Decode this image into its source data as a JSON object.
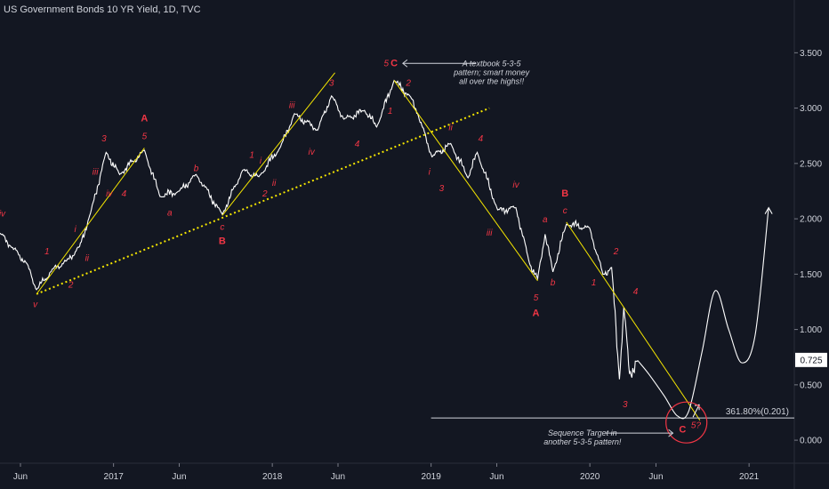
{
  "chart_data": {
    "type": "line",
    "title": "US Government Bonds 10 YR Yield, 1D, TVC",
    "y_ticks": [
      0.0,
      0.5,
      1.0,
      1.5,
      2.0,
      2.5,
      3.0,
      3.5
    ],
    "y_tick_labels": [
      "0.000",
      "0.500",
      "1.000",
      "1.500",
      "2.000",
      "2.500",
      "3.000",
      "3.500"
    ],
    "ylim": [
      -0.2,
      3.8
    ],
    "x_tick_labels": [
      "Jun",
      "2017",
      "Jun",
      "2018",
      "Jun",
      "2019",
      "Jun",
      "2020",
      "Jun",
      "2021"
    ],
    "xlim": [
      "2016-04-15",
      "2021-04-15"
    ],
    "current_value": "0.725",
    "fib_label": "361.80%(0.201)",
    "fib_value": 0.201,
    "series": [
      {
        "type": "price",
        "points": [
          [
            "2016-04-15",
            1.87
          ],
          [
            "2016-05-10",
            1.75
          ],
          [
            "2016-06-15",
            1.6
          ],
          [
            "2016-07-08",
            1.36
          ],
          [
            "2016-08-15",
            1.55
          ],
          [
            "2016-09-15",
            1.62
          ],
          [
            "2016-10-15",
            1.75
          ],
          [
            "2016-11-09",
            2.05
          ],
          [
            "2016-12-15",
            2.6
          ],
          [
            "2017-01-15",
            2.4
          ],
          [
            "2017-03-13",
            2.62
          ],
          [
            "2017-04-18",
            2.2
          ],
          [
            "2017-06-01",
            2.25
          ],
          [
            "2017-07-10",
            2.4
          ],
          [
            "2017-09-08",
            2.04
          ],
          [
            "2017-10-25",
            2.44
          ],
          [
            "2017-12-01",
            2.38
          ],
          [
            "2018-01-20",
            2.65
          ],
          [
            "2018-02-21",
            2.95
          ],
          [
            "2018-04-15",
            2.8
          ],
          [
            "2018-05-17",
            3.11
          ],
          [
            "2018-06-15",
            2.9
          ],
          [
            "2018-08-01",
            2.98
          ],
          [
            "2018-08-29",
            2.83
          ],
          [
            "2018-10-08",
            3.25
          ],
          [
            "2018-11-15",
            3.1
          ],
          [
            "2018-12-01",
            2.95
          ],
          [
            "2019-01-03",
            2.56
          ],
          [
            "2019-02-15",
            2.68
          ],
          [
            "2019-03-27",
            2.37
          ],
          [
            "2019-04-17",
            2.6
          ],
          [
            "2019-06-03",
            2.08
          ],
          [
            "2019-07-15",
            2.1
          ],
          [
            "2019-08-15",
            1.6
          ],
          [
            "2019-09-03",
            1.46
          ],
          [
            "2019-09-20",
            1.86
          ],
          [
            "2019-10-08",
            1.52
          ],
          [
            "2019-11-08",
            1.95
          ],
          [
            "2019-12-31",
            1.92
          ],
          [
            "2020-01-31",
            1.5
          ],
          [
            "2020-02-20",
            1.56
          ],
          [
            "2020-03-09",
            0.55
          ],
          [
            "2020-03-19",
            1.2
          ],
          [
            "2020-04-01",
            0.6
          ],
          [
            "2020-04-20",
            0.72
          ]
        ]
      },
      {
        "type": "projection",
        "points": [
          [
            "2020-04-20",
            0.72
          ],
          [
            "2020-05-15",
            0.6
          ],
          [
            "2020-06-20",
            0.4
          ],
          [
            "2020-07-20",
            0.22
          ],
          [
            "2020-08-15",
            0.26
          ],
          [
            "2020-09-15",
            0.8
          ],
          [
            "2020-10-15",
            1.35
          ],
          [
            "2020-11-15",
            1.0
          ],
          [
            "2020-12-15",
            0.7
          ],
          [
            "2021-01-15",
            0.95
          ],
          [
            "2021-02-15",
            2.1
          ]
        ]
      }
    ],
    "trendlines": [
      {
        "style": "solid",
        "from": [
          "2016-07-08",
          1.32
        ],
        "to": [
          "2017-03-13",
          2.64
        ]
      },
      {
        "style": "solid",
        "from": [
          "2017-09-08",
          2.03
        ],
        "to": [
          "2018-05-25",
          3.32
        ]
      },
      {
        "style": "dotted",
        "from": [
          "2016-07-08",
          1.32
        ],
        "to": [
          "2019-05-15",
          3.0
        ]
      },
      {
        "style": "solid",
        "from": [
          "2018-10-08",
          3.25
        ],
        "to": [
          "2019-09-03",
          1.44
        ]
      },
      {
        "style": "solid",
        "from": [
          "2019-11-08",
          1.97
        ],
        "to": [
          "2020-09-10",
          0.18
        ]
      }
    ],
    "wave_labels": [
      {
        "text": "iv",
        "x": "2016-04-20",
        "y": 2.02,
        "style": "small"
      },
      {
        "text": "v",
        "x": "2016-07-05",
        "y": 1.2,
        "style": "small"
      },
      {
        "text": "1",
        "x": "2016-08-01",
        "y": 1.68,
        "style": "small"
      },
      {
        "text": "i",
        "x": "2016-10-05",
        "y": 1.88,
        "style": "small"
      },
      {
        "text": "ii",
        "x": "2016-11-01",
        "y": 1.62,
        "style": "small"
      },
      {
        "text": "2",
        "x": "2016-09-25",
        "y": 1.38,
        "style": "small"
      },
      {
        "text": "iii",
        "x": "2016-11-20",
        "y": 2.4,
        "style": "small"
      },
      {
        "text": "3",
        "x": "2016-12-10",
        "y": 2.7,
        "style": "small"
      },
      {
        "text": "iv",
        "x": "2016-12-22",
        "y": 2.2,
        "style": "small"
      },
      {
        "text": "4",
        "x": "2017-01-25",
        "y": 2.2,
        "style": "small"
      },
      {
        "text": "5",
        "x": "2017-03-13",
        "y": 2.72,
        "style": "small"
      },
      {
        "text": "A",
        "x": "2017-03-13",
        "y": 2.88,
        "style": "big"
      },
      {
        "text": "a",
        "x": "2017-05-10",
        "y": 2.03,
        "style": "small"
      },
      {
        "text": "b",
        "x": "2017-07-10",
        "y": 2.43,
        "style": "small"
      },
      {
        "text": "c",
        "x": "2017-09-08",
        "y": 1.9,
        "style": "small"
      },
      {
        "text": "B",
        "x": "2017-09-08",
        "y": 1.77,
        "style": "big"
      },
      {
        "text": "1",
        "x": "2017-11-15",
        "y": 2.55,
        "style": "small"
      },
      {
        "text": "2",
        "x": "2017-12-15",
        "y": 2.2,
        "style": "small"
      },
      {
        "text": "i",
        "x": "2017-12-05",
        "y": 2.5,
        "style": "small"
      },
      {
        "text": "ii",
        "x": "2018-01-05",
        "y": 2.3,
        "style": "small"
      },
      {
        "text": "iii",
        "x": "2018-02-15",
        "y": 3.0,
        "style": "small"
      },
      {
        "text": "iv",
        "x": "2018-04-01",
        "y": 2.58,
        "style": "small"
      },
      {
        "text": "3",
        "x": "2018-05-17",
        "y": 3.2,
        "style": "small"
      },
      {
        "text": "4",
        "x": "2018-07-15",
        "y": 2.65,
        "style": "small"
      },
      {
        "text": "5",
        "x": "2018-09-20",
        "y": 3.38,
        "style": "small"
      },
      {
        "text": "C",
        "x": "2018-10-08",
        "y": 3.38,
        "style": "big"
      },
      {
        "text": "1",
        "x": "2018-09-29",
        "y": 2.95,
        "style": "small"
      },
      {
        "text": "2",
        "x": "2018-11-10",
        "y": 3.2,
        "style": "small"
      },
      {
        "text": "i",
        "x": "2018-12-28",
        "y": 2.4,
        "style": "small"
      },
      {
        "text": "ii",
        "x": "2019-02-15",
        "y": 2.8,
        "style": "small"
      },
      {
        "text": "3",
        "x": "2019-01-25",
        "y": 2.25,
        "style": "small"
      },
      {
        "text": "4",
        "x": "2019-04-25",
        "y": 2.7,
        "style": "small"
      },
      {
        "text": "iii",
        "x": "2019-05-15",
        "y": 1.85,
        "style": "small"
      },
      {
        "text": "iv",
        "x": "2019-07-15",
        "y": 2.28,
        "style": "small"
      },
      {
        "text": "5",
        "x": "2019-08-30",
        "y": 1.26,
        "style": "small"
      },
      {
        "text": "A",
        "x": "2019-08-30",
        "y": 1.12,
        "style": "big"
      },
      {
        "text": "a",
        "x": "2019-09-20",
        "y": 1.97,
        "style": "small"
      },
      {
        "text": "b",
        "x": "2019-10-08",
        "y": 1.4,
        "style": "small"
      },
      {
        "text": "c",
        "x": "2019-11-05",
        "y": 2.05,
        "style": "small"
      },
      {
        "text": "B",
        "x": "2019-11-05",
        "y": 2.2,
        "style": "big"
      },
      {
        "text": "1",
        "x": "2020-01-10",
        "y": 1.4,
        "style": "small"
      },
      {
        "text": "2",
        "x": "2020-03-01",
        "y": 1.68,
        "style": "small"
      },
      {
        "text": "4",
        "x": "2020-04-15",
        "y": 1.32,
        "style": "small"
      },
      {
        "text": "3",
        "x": "2020-03-22",
        "y": 0.3,
        "style": "small"
      },
      {
        "text": "5?",
        "x": "2020-09-01",
        "y": 0.11,
        "style": "small"
      },
      {
        "text": "C",
        "x": "2020-08-01",
        "y": 0.07,
        "style": "big"
      }
    ],
    "annotations": [
      {
        "lines": [
          "A textbook 5-3-5",
          "pattern; smart money",
          "all over the highs!!"
        ],
        "x": "2019-05-20",
        "y": 3.38
      },
      {
        "lines": [
          "Sequence Target in",
          "another 5-3-5 pattern!"
        ],
        "x": "2019-12-15",
        "y": 0.04
      }
    ]
  }
}
